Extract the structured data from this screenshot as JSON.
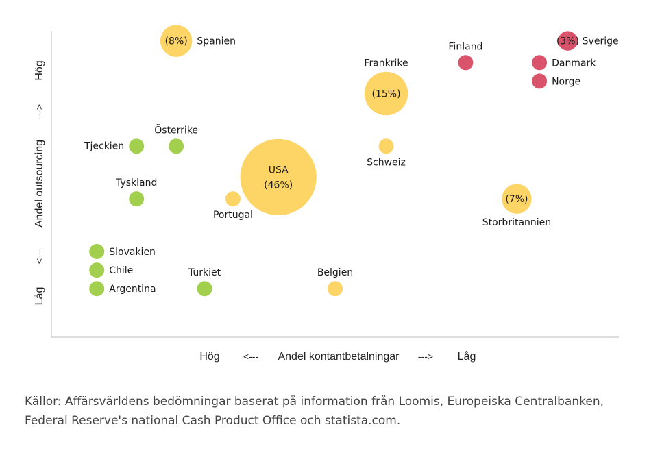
{
  "chart_data": {
    "type": "scatter",
    "title": "",
    "xlabel": "Andel kontantbetalningar",
    "ylabel": "Andel outsourcing",
    "x_axis": {
      "low_end_label": "Hög",
      "arrow_left": "<---",
      "arrow_right": "--->",
      "high_end_label": "Låg"
    },
    "y_axis": {
      "bottom_label": "Låg",
      "arrow_bottom": "<---",
      "arrow_top": "--->",
      "top_label": "Hög"
    },
    "xlim": [
      0,
      100
    ],
    "ylim": [
      0,
      100
    ],
    "grid": false,
    "colors": {
      "green": "#a3cf4f",
      "yellow": "#fdd466",
      "red": "#d9536b",
      "axis": "#bbbbbb"
    },
    "points": [
      {
        "label": "Spanien",
        "bubble_text": "(8%)",
        "x": 22,
        "y": 93,
        "size": 8,
        "color": "yellow",
        "label_pos": "right"
      },
      {
        "label": "Frankrike",
        "bubble_text": "(15%)",
        "x": 59,
        "y": 76,
        "size": 15,
        "color": "yellow",
        "label_pos": "top"
      },
      {
        "label": "Finland",
        "x": 73,
        "y": 86,
        "size": 1.5,
        "color": "red",
        "label_pos": "top"
      },
      {
        "label": "Sverige",
        "bubble_text": "(3%)",
        "x": 91,
        "y": 93,
        "size": 3,
        "color": "red",
        "label_pos": "right"
      },
      {
        "label": "Danmark",
        "x": 86,
        "y": 86,
        "size": 1.5,
        "color": "red",
        "label_pos": "right"
      },
      {
        "label": "Norge",
        "x": 86,
        "y": 80,
        "size": 1.5,
        "color": "red",
        "label_pos": "right"
      },
      {
        "label": "Tjeckien",
        "x": 15,
        "y": 59,
        "size": 1.5,
        "color": "green",
        "label_pos": "left"
      },
      {
        "label": "Österrike",
        "x": 22,
        "y": 59,
        "size": 1.5,
        "color": "green",
        "label_pos": "top"
      },
      {
        "label": "Schweiz",
        "x": 59,
        "y": 59,
        "size": 1.5,
        "color": "yellow",
        "label_pos": "bottom"
      },
      {
        "label": "USA",
        "bubble_text": "(46%)",
        "x": 40,
        "y": 49,
        "size": 46,
        "color": "yellow",
        "label_pos": "inside"
      },
      {
        "label": "Tyskland",
        "x": 15,
        "y": 42,
        "size": 1.5,
        "color": "green",
        "label_pos": "top"
      },
      {
        "label": "Portugal",
        "x": 32,
        "y": 42,
        "size": 1.5,
        "color": "yellow",
        "label_pos": "bottom"
      },
      {
        "label": "Storbritannien",
        "bubble_text": "(7%)",
        "x": 82,
        "y": 42,
        "size": 7,
        "color": "yellow",
        "label_pos": "bottom"
      },
      {
        "label": "Slovakien",
        "x": 8,
        "y": 25,
        "size": 1.5,
        "color": "green",
        "label_pos": "right"
      },
      {
        "label": "Chile",
        "x": 8,
        "y": 19,
        "size": 1.5,
        "color": "green",
        "label_pos": "right"
      },
      {
        "label": "Argentina",
        "x": 8,
        "y": 13,
        "size": 1.5,
        "color": "green",
        "label_pos": "right"
      },
      {
        "label": "Turkiet",
        "x": 27,
        "y": 13,
        "size": 1.5,
        "color": "green",
        "label_pos": "top"
      },
      {
        "label": "Belgien",
        "x": 50,
        "y": 13,
        "size": 1.5,
        "color": "yellow",
        "label_pos": "top"
      }
    ]
  },
  "source_text": "Källor: Affärsvärldens bedömningar baserat på information från Loomis, Europeiska Centralbanken, Federal Reserve's national Cash Product Office och statista.com."
}
